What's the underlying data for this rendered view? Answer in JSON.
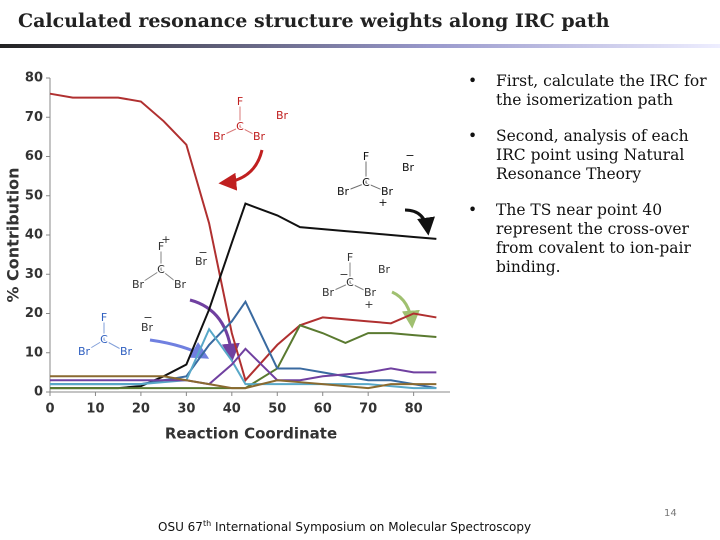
{
  "title": "Calculated resonance structure weights along IRC path",
  "bullets": [
    "First, calculate the IRC for the isomerization path",
    "Second, analysis of each IRC point using Natural Resonance Theory",
    "The TS near point 40 represent the cross-over from covalent to ion-pair binding."
  ],
  "footer": {
    "before": "OSU 67",
    "sup": "th",
    "after": "International Symposium on Molecular Spectroscopy"
  },
  "page_number": "14",
  "structures": [
    {
      "atoms": [
        "F",
        "C",
        "Br",
        "Br",
        "Br"
      ]
    },
    {
      "atoms": [
        "F",
        "C",
        "Br",
        "Br",
        "Br",
        "−",
        "+"
      ]
    },
    {
      "atoms": [
        "F",
        "C",
        "Br",
        "Br",
        "Br",
        "+",
        "−"
      ]
    },
    {
      "atoms": [
        "F",
        "C",
        "Br",
        "Br",
        "Br",
        "+",
        "−"
      ]
    },
    {
      "atoms": [
        "F",
        "C",
        "Br",
        "Br",
        "Br",
        "−"
      ]
    }
  ],
  "chart_data": {
    "type": "line",
    "x_label": "Reaction Coordinate",
    "y_label": "% Contribution",
    "x": [
      0,
      5,
      10,
      15,
      20,
      25,
      30,
      35,
      40,
      43,
      50,
      55,
      60,
      65,
      70,
      75,
      80,
      85
    ],
    "xlim": [
      0,
      88
    ],
    "xticks": [
      0,
      10,
      20,
      30,
      40,
      50,
      60,
      70,
      80
    ],
    "ylim": [
      0,
      80
    ],
    "yticks": [
      0,
      10,
      20,
      30,
      40,
      50,
      60,
      70,
      80
    ],
    "series": [
      {
        "color": "#b03030",
        "values": [
          76,
          75,
          75,
          75,
          74,
          69,
          63,
          43,
          15,
          3,
          12,
          17,
          19,
          18.5,
          18,
          17.5,
          20,
          19
        ]
      },
      {
        "color": "#111111",
        "values": [
          1,
          1,
          1,
          1,
          1.5,
          4,
          7,
          21,
          38,
          48,
          45,
          42,
          41.5,
          41,
          40.5,
          40,
          39.5,
          39
        ]
      },
      {
        "color": "#5a7a30",
        "values": [
          1,
          1,
          1,
          1,
          1,
          1,
          1,
          1,
          1,
          1,
          6,
          17,
          15,
          12.5,
          15,
          15,
          14.5,
          14
        ]
      },
      {
        "color": "#3a6aa0",
        "values": [
          2,
          2,
          2,
          2,
          2,
          3,
          4,
          12,
          18,
          23,
          6,
          6,
          5,
          4,
          3,
          3,
          2,
          1
        ]
      },
      {
        "color": "#58a8c8",
        "values": [
          2,
          2,
          2,
          2,
          2,
          2.5,
          3,
          16,
          8,
          2,
          2,
          2,
          2,
          2,
          2,
          1.5,
          1,
          1
        ]
      },
      {
        "color": "#7040a0",
        "values": [
          3,
          3,
          3,
          3,
          3,
          3,
          3,
          2,
          7,
          11,
          3,
          3,
          4,
          4.5,
          5,
          6,
          5,
          5
        ]
      },
      {
        "color": "#8a6a30",
        "values": [
          4,
          4,
          4,
          4,
          4,
          4,
          3,
          2,
          1,
          1,
          3,
          2.5,
          2,
          1.5,
          1,
          2,
          2,
          2
        ]
      }
    ]
  }
}
